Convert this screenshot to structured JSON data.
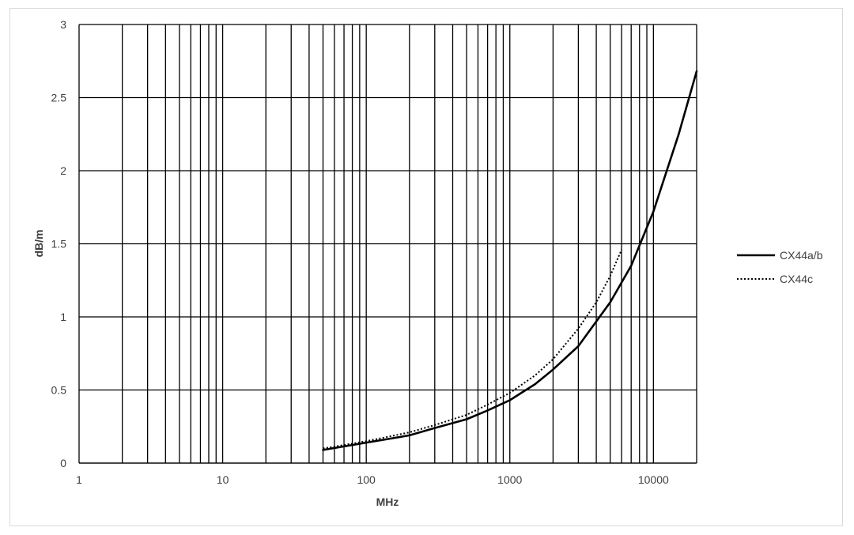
{
  "chart_data": {
    "type": "line",
    "title": "",
    "xlabel": "MHz",
    "ylabel": "dB/m",
    "x_scale": "log",
    "xlim": [
      1,
      20000
    ],
    "ylim": [
      0,
      3
    ],
    "x_ticks": [
      "1",
      "10",
      "100",
      "1000",
      "10000"
    ],
    "y_ticks": [
      "0",
      "0.5",
      "1",
      "1.5",
      "2",
      "2.5",
      "3"
    ],
    "grid": true,
    "legend_position": "right",
    "series": [
      {
        "name": "CX44a/b",
        "style": "solid",
        "color": "#000000",
        "x": [
          50,
          100,
          200,
          300,
          500,
          700,
          1000,
          1500,
          2000,
          3000,
          5000,
          7000,
          10000,
          15000,
          20000
        ],
        "y": [
          0.09,
          0.14,
          0.19,
          0.24,
          0.3,
          0.36,
          0.43,
          0.54,
          0.64,
          0.8,
          1.1,
          1.35,
          1.72,
          2.25,
          2.68
        ]
      },
      {
        "name": "CX44c",
        "style": "dotted",
        "color": "#000000",
        "x": [
          50,
          100,
          200,
          300,
          500,
          700,
          1000,
          1500,
          2000,
          3000,
          4000,
          5000,
          6000
        ],
        "y": [
          0.1,
          0.15,
          0.21,
          0.26,
          0.33,
          0.4,
          0.48,
          0.6,
          0.71,
          0.92,
          1.1,
          1.28,
          1.46
        ]
      }
    ]
  }
}
